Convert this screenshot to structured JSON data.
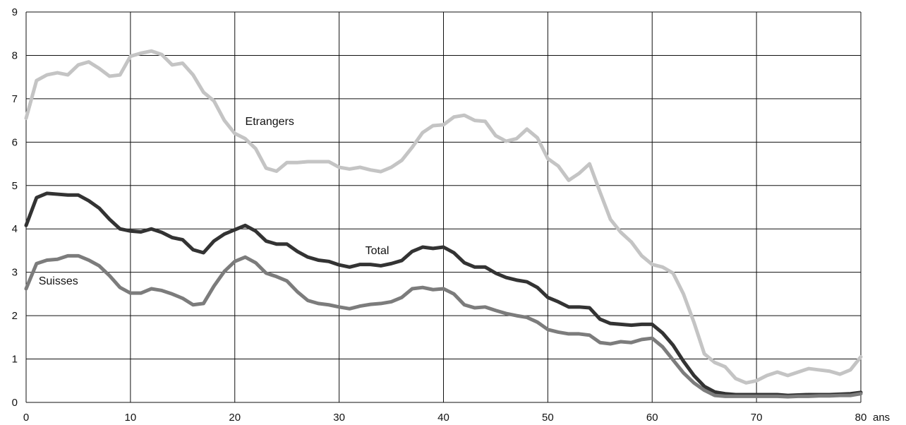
{
  "chart_data": {
    "type": "line",
    "x_unit_label": "ans",
    "xlim": [
      0,
      80
    ],
    "ylim": [
      0,
      9
    ],
    "x_ticks": [
      0,
      10,
      20,
      30,
      40,
      50,
      60,
      70,
      80
    ],
    "y_ticks": [
      0,
      1,
      2,
      3,
      4,
      5,
      6,
      7,
      8,
      9
    ],
    "grid": true,
    "legend": "inline labels",
    "series": [
      {
        "name": "Etrangers",
        "color": "#c4c4c4",
        "x": [
          0,
          1,
          2,
          3,
          4,
          5,
          6,
          7,
          8,
          9,
          10,
          11,
          12,
          13,
          14,
          15,
          16,
          17,
          18,
          19,
          20,
          21,
          22,
          23,
          24,
          25,
          26,
          27,
          28,
          29,
          30,
          31,
          32,
          33,
          34,
          35,
          36,
          37,
          38,
          39,
          40,
          41,
          42,
          43,
          44,
          45,
          46,
          47,
          48,
          49,
          50,
          51,
          52,
          53,
          54,
          55,
          56,
          57,
          58,
          59,
          60,
          61,
          62,
          63,
          64,
          65,
          66,
          67,
          68,
          69,
          70,
          71,
          72,
          73,
          74,
          75,
          76,
          77,
          78,
          79,
          80
        ],
        "y": [
          6.55,
          7.42,
          7.55,
          7.6,
          7.55,
          7.78,
          7.85,
          7.7,
          7.52,
          7.55,
          7.98,
          8.05,
          8.1,
          8.02,
          7.78,
          7.82,
          7.55,
          7.15,
          6.95,
          6.5,
          6.2,
          6.08,
          5.85,
          5.4,
          5.33,
          5.53,
          5.53,
          5.55,
          5.55,
          5.55,
          5.42,
          5.38,
          5.42,
          5.36,
          5.32,
          5.42,
          5.58,
          5.88,
          6.22,
          6.38,
          6.4,
          6.58,
          6.62,
          6.5,
          6.48,
          6.15,
          6.02,
          6.08,
          6.3,
          6.1,
          5.62,
          5.45,
          5.12,
          5.28,
          5.5,
          4.85,
          4.22,
          3.92,
          3.7,
          3.38,
          3.18,
          3.12,
          2.98,
          2.5,
          1.85,
          1.12,
          0.92,
          0.82,
          0.55,
          0.45,
          0.5,
          0.62,
          0.7,
          0.62,
          0.7,
          0.78,
          0.75,
          0.72,
          0.65,
          0.75,
          1.05
        ]
      },
      {
        "name": "Total",
        "color": "#333333",
        "x": [
          0,
          1,
          2,
          3,
          4,
          5,
          6,
          7,
          8,
          9,
          10,
          11,
          12,
          13,
          14,
          15,
          16,
          17,
          18,
          19,
          20,
          21,
          22,
          23,
          24,
          25,
          26,
          27,
          28,
          29,
          30,
          31,
          32,
          33,
          34,
          35,
          36,
          37,
          38,
          39,
          40,
          41,
          42,
          43,
          44,
          45,
          46,
          47,
          48,
          49,
          50,
          51,
          52,
          53,
          54,
          55,
          56,
          57,
          58,
          59,
          60,
          61,
          62,
          63,
          64,
          65,
          66,
          67,
          68,
          69,
          70,
          71,
          72,
          73,
          74,
          75,
          76,
          77,
          78,
          79,
          80
        ],
        "y": [
          4.08,
          4.72,
          4.82,
          4.8,
          4.78,
          4.78,
          4.65,
          4.48,
          4.22,
          4.0,
          3.95,
          3.93,
          4.0,
          3.92,
          3.8,
          3.75,
          3.52,
          3.45,
          3.72,
          3.88,
          3.98,
          4.08,
          3.95,
          3.72,
          3.65,
          3.65,
          3.48,
          3.35,
          3.28,
          3.25,
          3.17,
          3.12,
          3.18,
          3.18,
          3.15,
          3.2,
          3.27,
          3.48,
          3.58,
          3.55,
          3.58,
          3.45,
          3.22,
          3.12,
          3.12,
          2.98,
          2.88,
          2.82,
          2.78,
          2.65,
          2.42,
          2.32,
          2.2,
          2.2,
          2.18,
          1.92,
          1.82,
          1.8,
          1.78,
          1.8,
          1.8,
          1.6,
          1.32,
          0.95,
          0.62,
          0.37,
          0.24,
          0.2,
          0.18,
          0.18,
          0.18,
          0.18,
          0.18,
          0.16,
          0.17,
          0.18,
          0.18,
          0.18,
          0.19,
          0.2,
          0.23
        ]
      },
      {
        "name": "Suisses",
        "color": "#7c7c7c",
        "x": [
          0,
          1,
          2,
          3,
          4,
          5,
          6,
          7,
          8,
          9,
          10,
          11,
          12,
          13,
          14,
          15,
          16,
          17,
          18,
          19,
          20,
          21,
          22,
          23,
          24,
          25,
          26,
          27,
          28,
          29,
          30,
          31,
          32,
          33,
          34,
          35,
          36,
          37,
          38,
          39,
          40,
          41,
          42,
          43,
          44,
          45,
          46,
          47,
          48,
          49,
          50,
          51,
          52,
          53,
          54,
          55,
          56,
          57,
          58,
          59,
          60,
          61,
          62,
          63,
          64,
          65,
          66,
          67,
          68,
          69,
          70,
          71,
          72,
          73,
          74,
          75,
          76,
          77,
          78,
          79,
          80
        ],
        "y": [
          2.62,
          3.2,
          3.28,
          3.3,
          3.38,
          3.38,
          3.28,
          3.15,
          2.92,
          2.65,
          2.52,
          2.52,
          2.62,
          2.58,
          2.5,
          2.4,
          2.25,
          2.28,
          2.68,
          3.02,
          3.25,
          3.35,
          3.22,
          2.98,
          2.9,
          2.8,
          2.55,
          2.35,
          2.28,
          2.25,
          2.2,
          2.16,
          2.22,
          2.26,
          2.28,
          2.32,
          2.42,
          2.62,
          2.65,
          2.6,
          2.62,
          2.5,
          2.25,
          2.18,
          2.2,
          2.12,
          2.05,
          2.0,
          1.96,
          1.85,
          1.68,
          1.62,
          1.58,
          1.58,
          1.55,
          1.38,
          1.35,
          1.4,
          1.38,
          1.45,
          1.48,
          1.28,
          0.98,
          0.68,
          0.45,
          0.28,
          0.16,
          0.14,
          0.14,
          0.14,
          0.14,
          0.14,
          0.14,
          0.13,
          0.14,
          0.14,
          0.15,
          0.15,
          0.16,
          0.16,
          0.2
        ]
      }
    ],
    "labels": [
      {
        "series": "Etrangers",
        "text": "Etrangers",
        "at_x": 21,
        "at_y": 6.4
      },
      {
        "series": "Total",
        "text": "Total",
        "at_x": 32.5,
        "at_y": 3.42
      },
      {
        "series": "Suisses",
        "text": "Suisses",
        "at_x": 1.2,
        "at_y": 2.72
      }
    ]
  }
}
